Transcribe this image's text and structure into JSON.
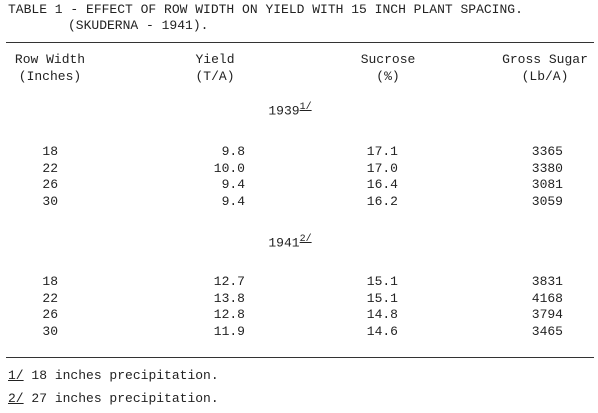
{
  "table": {
    "title": [
      "TABLE 1 - EFFECT OF ROW WIDTH ON YIELD WITH 15 INCH PLANT SPACING.",
      "(SKUDERNA - 1941)."
    ],
    "headers": [
      [
        "Row Width",
        "(Inches)"
      ],
      [
        "Yield",
        "(T/A)"
      ],
      [
        "Sucrose",
        "(%)"
      ],
      [
        "Gross Sugar",
        "(Lb/A)"
      ]
    ],
    "sections": [
      {
        "year": "1939",
        "note": "1/",
        "rows": [
          [
            "18",
            "9.8",
            "17.1",
            "3365"
          ],
          [
            "22",
            "10.0",
            "17.0",
            "3380"
          ],
          [
            "26",
            "9.4",
            "16.4",
            "3081"
          ],
          [
            "30",
            "9.4",
            "16.2",
            "3059"
          ]
        ]
      },
      {
        "year": "1941",
        "note": "2/",
        "rows": [
          [
            "18",
            "12.7",
            "15.1",
            "3831"
          ],
          [
            "22",
            "13.8",
            "15.1",
            "4168"
          ],
          [
            "26",
            "12.8",
            "14.8",
            "3794"
          ],
          [
            "30",
            "11.9",
            "14.6",
            "3465"
          ]
        ]
      }
    ],
    "footnotes": [
      {
        "mark": "1/",
        "text": "18 inches precipitation."
      },
      {
        "mark": "2/",
        "text": "27 inches precipitation."
      }
    ]
  }
}
